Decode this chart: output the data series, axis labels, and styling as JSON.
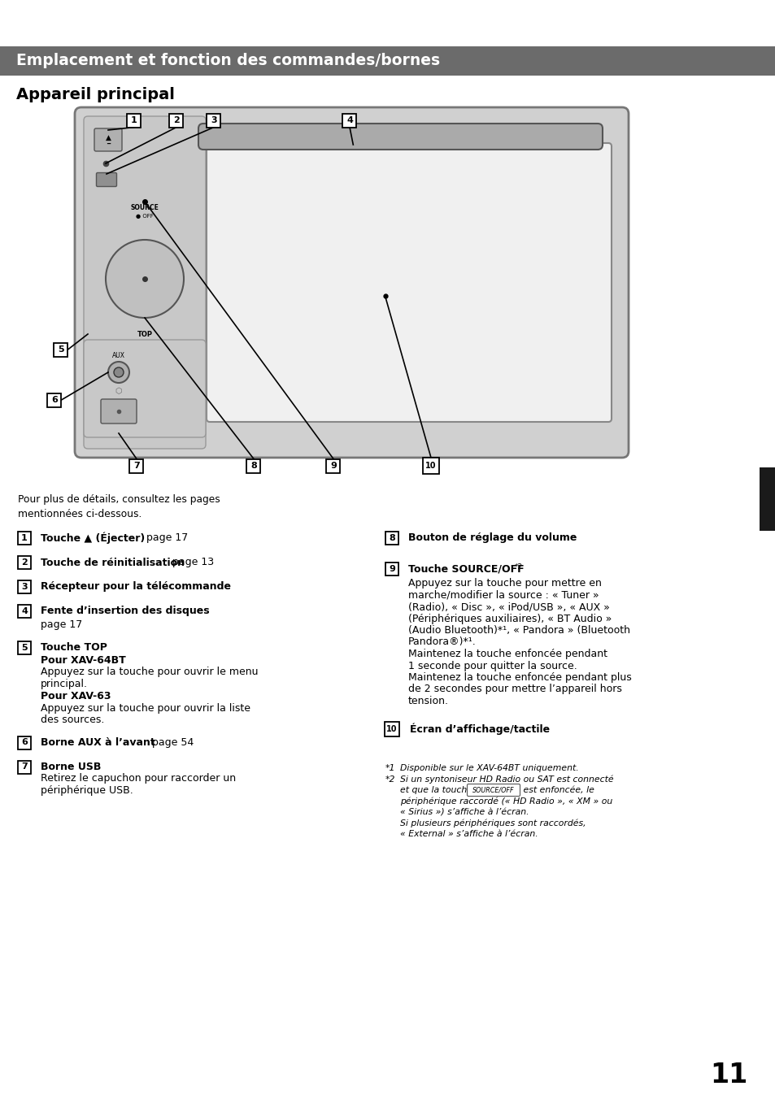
{
  "page_bg": "#ffffff",
  "header_bg": "#6b6b6b",
  "header_text": "Emplacement et fonction des commandes/bornes",
  "header_text_color": "#ffffff",
  "section_title": "Appareil principal",
  "body_text_color": "#000000",
  "page_number": "11",
  "black_tab_color": "#1a1a1a",
  "intro_text": "Pour plus de détails, consultez les pages\nmentionnées ci-dessous.",
  "col1_items": [
    {
      "num": "1",
      "lines": [
        {
          "text": "Touche ▲ (Éjecter)",
          "bold": true
        },
        {
          "text": "  page 17",
          "bold": false
        }
      ],
      "continuation": []
    },
    {
      "num": "2",
      "lines": [
        {
          "text": "Touche de réinitialisation",
          "bold": true
        },
        {
          "text": "  page 13",
          "bold": false
        }
      ],
      "continuation": []
    },
    {
      "num": "3",
      "lines": [
        {
          "text": "Récepteur pour la télécommande",
          "bold": true
        }
      ],
      "continuation": []
    },
    {
      "num": "4",
      "lines": [
        {
          "text": "Fente d’insertion des disques",
          "bold": true
        }
      ],
      "continuation": [
        "page 17"
      ]
    },
    {
      "num": "5",
      "lines": [
        {
          "text": "Touche TOP",
          "bold": true
        }
      ],
      "continuation": [
        {
          "text": "Pour XAV-64BT",
          "bold": true
        },
        "Appuyez sur la touche pour ouvrir le menu",
        "principal.",
        {
          "text": "Pour XAV-63",
          "bold": true
        },
        "Appuyez sur la touche pour ouvrir la liste",
        "des sources."
      ]
    },
    {
      "num": "6",
      "lines": [
        {
          "text": "Borne AUX à l’avant",
          "bold": true
        },
        {
          "text": "  page 54",
          "bold": false
        }
      ],
      "continuation": []
    },
    {
      "num": "7",
      "lines": [
        {
          "text": "Borne USB",
          "bold": true
        }
      ],
      "continuation": [
        "Retirez le capuchon pour raccorder un",
        "périphérique USB."
      ]
    }
  ],
  "col2_items": [
    {
      "num": "8",
      "lines": [
        {
          "text": "Bouton de réglage du volume",
          "bold": true
        }
      ],
      "continuation": []
    },
    {
      "num": "9",
      "lines": [
        {
          "text": "Touche SOURCE/OFF",
          "bold": true
        },
        {
          "text": "*2",
          "bold": false,
          "sup": true
        }
      ],
      "continuation": [
        "Appuyez sur la touche pour mettre en",
        "marche/modifier la source : « Tuner »",
        "(Radio), « Disc », « iPod/USB », « AUX »",
        "(Périphériques auxiliaires), « BT Audio »",
        "(Audio Bluetooth)*¹, « Pandora » (Bluetooth",
        "Pandora®)*¹.",
        "Maintenez la touche enfoncée pendant",
        "1 seconde pour quitter la source.",
        "Maintenez la touche enfoncée pendant plus",
        "de 2 secondes pour mettre l’appareil hors",
        "tension."
      ]
    },
    {
      "num": "10",
      "lines": [
        {
          "text": "Écran d’affichage/tactile",
          "bold": true
        }
      ],
      "continuation": []
    }
  ],
  "footnotes_col2": [
    {
      "sup": "*1",
      "text": "Disponible sur le XAV-64BT uniquement.",
      "italic": true
    },
    {
      "sup": "*2",
      "text": "Si un syntoniseur HD Radio ou SAT est connecté",
      "italic": true
    },
    {
      "sup": "",
      "text": "et que la touche [SOURCE/OFF] est enfoncée, le",
      "italic": true
    },
    {
      "sup": "",
      "text": "périphérique raccordé (« HD Radio », « XM » ou",
      "italic": true
    },
    {
      "sup": "",
      "text": "« Sirius ») s’affiche à l’écran.",
      "italic": true
    },
    {
      "sup": "",
      "text": "Si plusieurs périphériques sont raccordés,",
      "italic": true
    },
    {
      "sup": "",
      "text": "« External » s’affiche à l’écran.",
      "italic": true
    }
  ]
}
